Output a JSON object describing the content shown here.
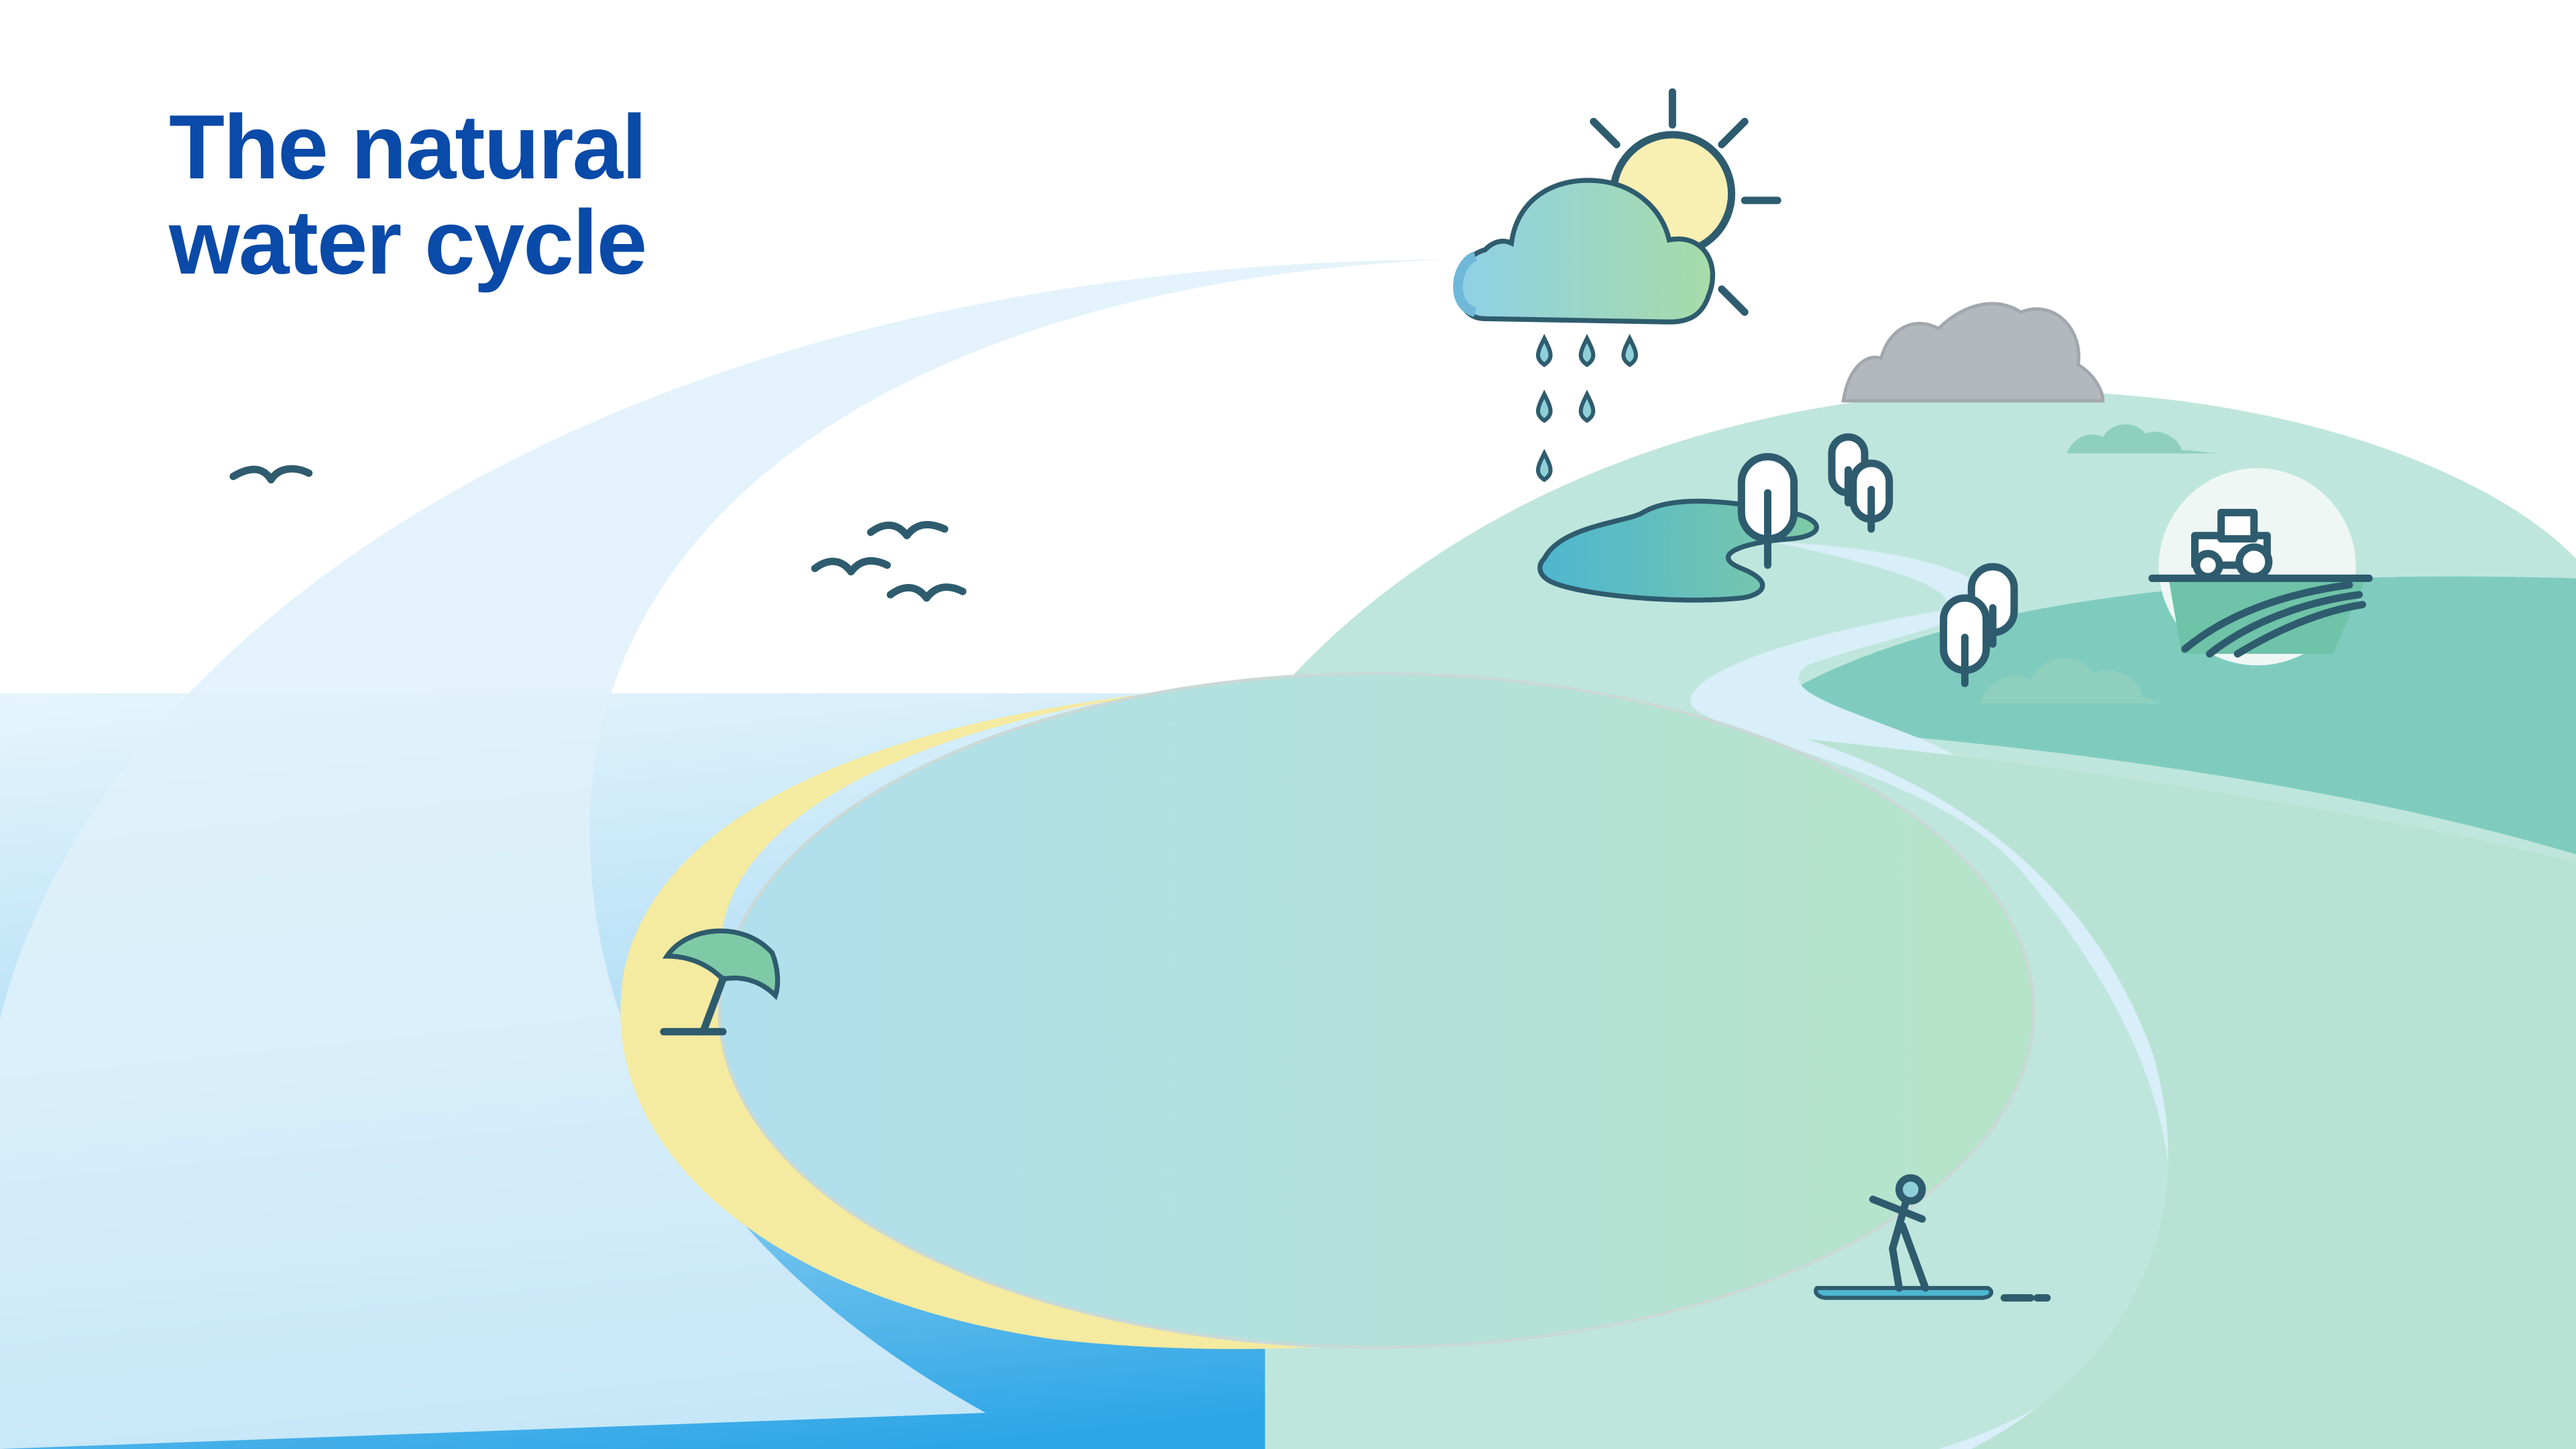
{
  "title": {
    "line1": "The natural",
    "line2": "water cycle"
  },
  "colors": {
    "title": "#0a4aa8",
    "sky": "#ffffff",
    "sea_light": "#d6eefa",
    "sea_deep": "#2ea6e6",
    "swoosh": "#dff1fa",
    "hill": "#bfe6dc",
    "hill_dark": "#7fccbf",
    "lake": "#b2e0e8",
    "lake_green": "#b6e2cc",
    "sand": "#f4eaa0",
    "icon_stroke": "#2e5c6e",
    "mountain": "#b3b8bd",
    "cloud_fill": "#8fd0d8",
    "sun_fill": "#f8efb2"
  },
  "icons": [
    "cloud-icon",
    "sun-icon",
    "raindrop-icon",
    "bird-icon",
    "tree-icon",
    "tractor-icon",
    "beach-umbrella-icon",
    "paddleboarder-icon",
    "pond-icon",
    "mountain-icon",
    "bush-icon"
  ]
}
